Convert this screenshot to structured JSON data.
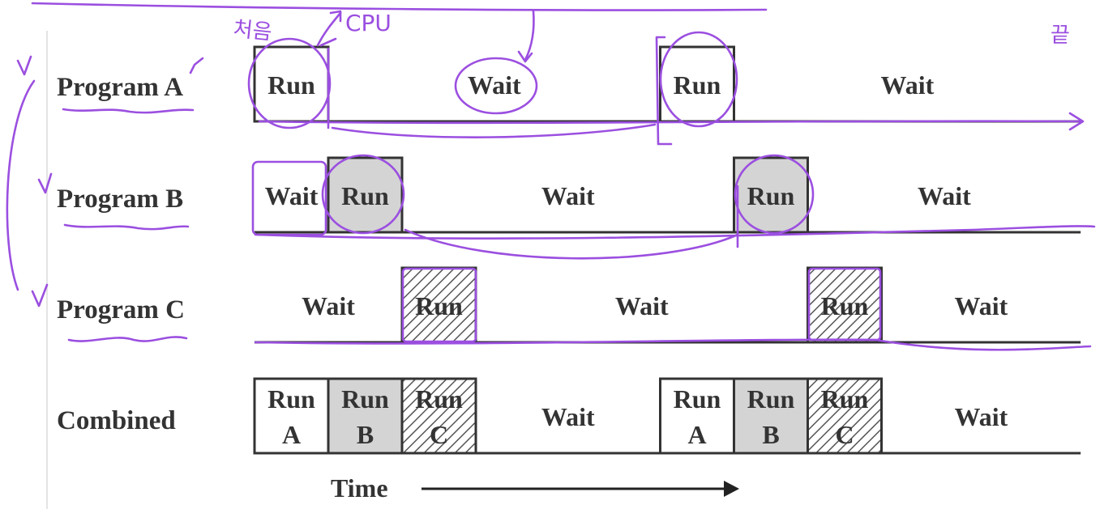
{
  "rows": [
    {
      "label": "Program A",
      "segments": [
        {
          "text": "Run",
          "fill": "white",
          "boxed": true,
          "start": 0,
          "end": 1
        },
        {
          "text": "Wait",
          "fill": "none",
          "boxed": false,
          "start": 1,
          "end": 5.5
        },
        {
          "text": "Run",
          "fill": "white",
          "boxed": true,
          "start": 5.5,
          "end": 6.5
        },
        {
          "text": "Wait",
          "fill": "none",
          "boxed": false,
          "start": 6.5,
          "end": 11.2
        }
      ]
    },
    {
      "label": "Program B",
      "segments": [
        {
          "text": "Wait",
          "fill": "none",
          "boxed": false,
          "start": 0,
          "end": 1
        },
        {
          "text": "Run",
          "fill": "gray",
          "boxed": true,
          "start": 1,
          "end": 2
        },
        {
          "text": "Wait",
          "fill": "none",
          "boxed": false,
          "start": 2,
          "end": 6.5
        },
        {
          "text": "Run",
          "fill": "gray",
          "boxed": true,
          "start": 6.5,
          "end": 7.5
        },
        {
          "text": "Wait",
          "fill": "none",
          "boxed": false,
          "start": 7.5,
          "end": 11.2
        }
      ]
    },
    {
      "label": "Program C",
      "segments": [
        {
          "text": "Wait",
          "fill": "none",
          "boxed": false,
          "start": 0,
          "end": 2
        },
        {
          "text": "Run",
          "fill": "hatch",
          "boxed": true,
          "start": 2,
          "end": 3
        },
        {
          "text": "Wait",
          "fill": "none",
          "boxed": false,
          "start": 3,
          "end": 7.5
        },
        {
          "text": "Run",
          "fill": "hatch",
          "boxed": true,
          "start": 7.5,
          "end": 8.5
        },
        {
          "text": "Wait",
          "fill": "none",
          "boxed": false,
          "start": 8.5,
          "end": 11.2
        }
      ]
    },
    {
      "label": "Combined",
      "segments": [
        {
          "text": "Run\nA",
          "fill": "white",
          "boxed": true,
          "start": 0,
          "end": 1
        },
        {
          "text": "Run\nB",
          "fill": "gray",
          "boxed": true,
          "start": 1,
          "end": 2
        },
        {
          "text": "Run\nC",
          "fill": "hatch",
          "boxed": true,
          "start": 2,
          "end": 3
        },
        {
          "text": "Wait",
          "fill": "none",
          "boxed": false,
          "start": 3,
          "end": 5.5
        },
        {
          "text": "Run\nA",
          "fill": "white",
          "boxed": true,
          "start": 5.5,
          "end": 6.5
        },
        {
          "text": "Run\nB",
          "fill": "gray",
          "boxed": true,
          "start": 6.5,
          "end": 7.5
        },
        {
          "text": "Run\nC",
          "fill": "hatch",
          "boxed": true,
          "start": 7.5,
          "end": 8.5
        },
        {
          "text": "Wait",
          "fill": "none",
          "boxed": false,
          "start": 8.5,
          "end": 11.2
        }
      ]
    }
  ],
  "time_label": "Time",
  "annotations": {
    "first": "처음",
    "cpu": "CPU",
    "end": "끝"
  },
  "colors": {
    "ink": "#333333",
    "gray_fill": "#d4d4d4",
    "marker": "#9b4fe0"
  }
}
